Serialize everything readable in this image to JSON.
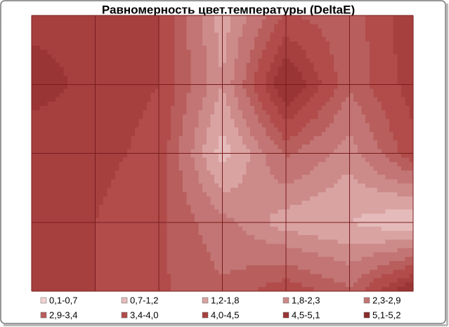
{
  "chart_data": {
    "type": "contour",
    "title": "Равномерность цвет.температуры (DeltaE)",
    "z": [
      [
        4.3,
        4.3,
        4.0,
        1.5,
        3.5,
        3.0,
        4.5
      ],
      [
        4.8,
        4.3,
        4.0,
        1.8,
        5.2,
        3.0,
        4.3
      ],
      [
        4.0,
        4.2,
        3.8,
        0.9,
        3.0,
        2.0,
        3.8
      ],
      [
        4.0,
        4.0,
        3.5,
        2.5,
        1.5,
        1.2,
        0.6
      ],
      [
        4.5,
        4.0,
        3.5,
        3.0,
        3.8,
        3.0,
        5.1
      ]
    ],
    "grid": true,
    "bands": [
      {
        "label": "0,1-0,7",
        "from": 0.1,
        "to": 0.7,
        "color": "#f2d3d2"
      },
      {
        "label": "0,7-1,2",
        "from": 0.7,
        "to": 1.2,
        "color": "#e4bbba"
      },
      {
        "label": "1,2-1,8",
        "from": 1.2,
        "to": 1.8,
        "color": "#d9a3a2"
      },
      {
        "label": "1,8-2,3",
        "from": 1.8,
        "to": 2.3,
        "color": "#cc8a89"
      },
      {
        "label": "2,3-2,9",
        "from": 2.3,
        "to": 2.9,
        "color": "#c27574"
      },
      {
        "label": "2,9-3,4",
        "from": 2.9,
        "to": 3.4,
        "color": "#b85e5d"
      },
      {
        "label": "3,4-4,0",
        "from": 3.4,
        "to": 4.0,
        "color": "#b14c4b"
      },
      {
        "label": "4,0-4,5",
        "from": 4.0,
        "to": 4.5,
        "color": "#a6403f"
      },
      {
        "label": "4,5-5,1",
        "from": 4.5,
        "to": 5.1,
        "color": "#993534"
      },
      {
        "label": "5,1-5,2",
        "from": 5.1,
        "to": 5.2,
        "color": "#8a2a2a"
      }
    ]
  }
}
